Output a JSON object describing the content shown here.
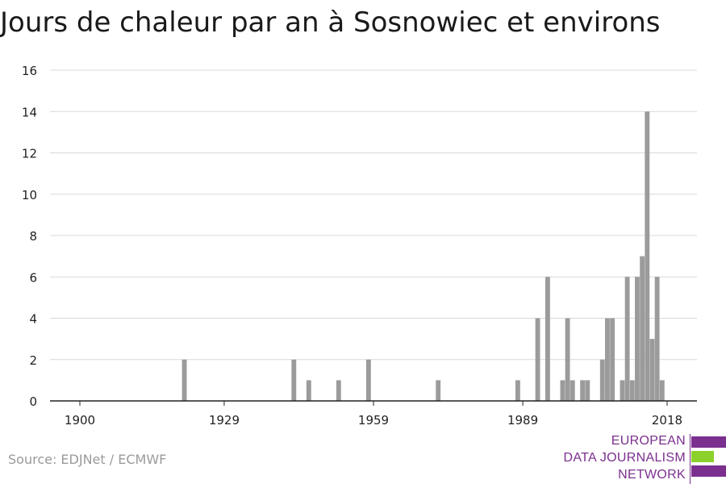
{
  "title": "Jours de chaleur par an à Sosnowiec et environs",
  "source": "Source: EDJNet / ECMWF",
  "logo": {
    "lines": [
      "EUROPEAN",
      "DATA JOURNALISM",
      "NETWORK"
    ],
    "colors": [
      "#7b2f8e",
      "#8cd12b",
      "#7b2f8e"
    ]
  },
  "chart_data": {
    "type": "bar",
    "xlabel": "",
    "ylabel": "",
    "xlim": [
      1894,
      2024
    ],
    "ylim": [
      0,
      16
    ],
    "yticks": [
      0,
      2,
      4,
      6,
      8,
      10,
      12,
      14,
      16
    ],
    "xticks": [
      1900,
      1929,
      1959,
      1989,
      2018
    ],
    "grid": true,
    "bar_color": "#9b9b9b",
    "x": [
      1921,
      1943,
      1946,
      1952,
      1958,
      1972,
      1988,
      1992,
      1994,
      1997,
      1998,
      1999,
      2001,
      2002,
      2005,
      2006,
      2007,
      2009,
      2010,
      2011,
      2012,
      2013,
      2014,
      2015,
      2016,
      2017,
      2018
    ],
    "values": [
      2,
      2,
      1,
      1,
      2,
      1,
      1,
      4,
      6,
      1,
      4,
      1,
      1,
      1,
      2,
      4,
      4,
      1,
      6,
      1,
      6,
      7,
      14,
      3,
      6,
      1,
      0
    ]
  }
}
